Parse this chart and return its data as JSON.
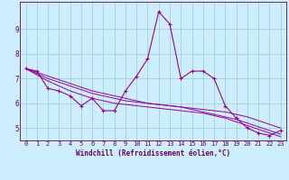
{
  "title": "",
  "xlabel": "Windchill (Refroidissement éolien,°C)",
  "ylabel": "",
  "x": [
    0,
    1,
    2,
    3,
    4,
    5,
    6,
    7,
    8,
    9,
    10,
    11,
    12,
    13,
    14,
    15,
    16,
    17,
    18,
    19,
    20,
    21,
    22,
    23
  ],
  "y_main": [
    7.4,
    7.3,
    6.6,
    6.5,
    6.3,
    5.9,
    6.2,
    5.7,
    5.7,
    6.5,
    7.1,
    7.8,
    9.7,
    9.2,
    7.0,
    7.3,
    7.3,
    7.0,
    5.9,
    5.4,
    5.0,
    4.8,
    4.7,
    4.9
  ],
  "y_reg1": [
    7.4,
    7.25,
    7.1,
    6.95,
    6.8,
    6.65,
    6.5,
    6.4,
    6.3,
    6.2,
    6.1,
    6.0,
    5.95,
    5.9,
    5.85,
    5.8,
    5.75,
    5.7,
    5.65,
    5.55,
    5.45,
    5.3,
    5.15,
    5.0
  ],
  "y_reg2": [
    7.4,
    7.2,
    7.0,
    6.85,
    6.7,
    6.55,
    6.4,
    6.3,
    6.2,
    6.1,
    6.05,
    6.0,
    5.95,
    5.9,
    5.85,
    5.75,
    5.65,
    5.55,
    5.45,
    5.35,
    5.2,
    5.05,
    4.9,
    4.75
  ],
  "y_reg3": [
    7.4,
    7.15,
    6.9,
    6.7,
    6.5,
    6.35,
    6.2,
    6.1,
    6.0,
    5.95,
    5.9,
    5.85,
    5.8,
    5.75,
    5.7,
    5.65,
    5.6,
    5.5,
    5.4,
    5.25,
    5.1,
    4.95,
    4.8,
    4.65
  ],
  "line_color": "#990099",
  "bg_color": "#cceeff",
  "grid_color": "#99cccc",
  "text_color": "#660066",
  "ylim": [
    4.5,
    10.1
  ],
  "xlim": [
    -0.5,
    23.5
  ],
  "yticks": [
    5,
    6,
    7,
    8,
    9
  ],
  "xticks": [
    0,
    1,
    2,
    3,
    4,
    5,
    6,
    7,
    8,
    9,
    10,
    11,
    12,
    13,
    14,
    15,
    16,
    17,
    18,
    19,
    20,
    21,
    22,
    23
  ],
  "tick_fontsize": 5.0,
  "xlabel_fontsize": 5.5
}
